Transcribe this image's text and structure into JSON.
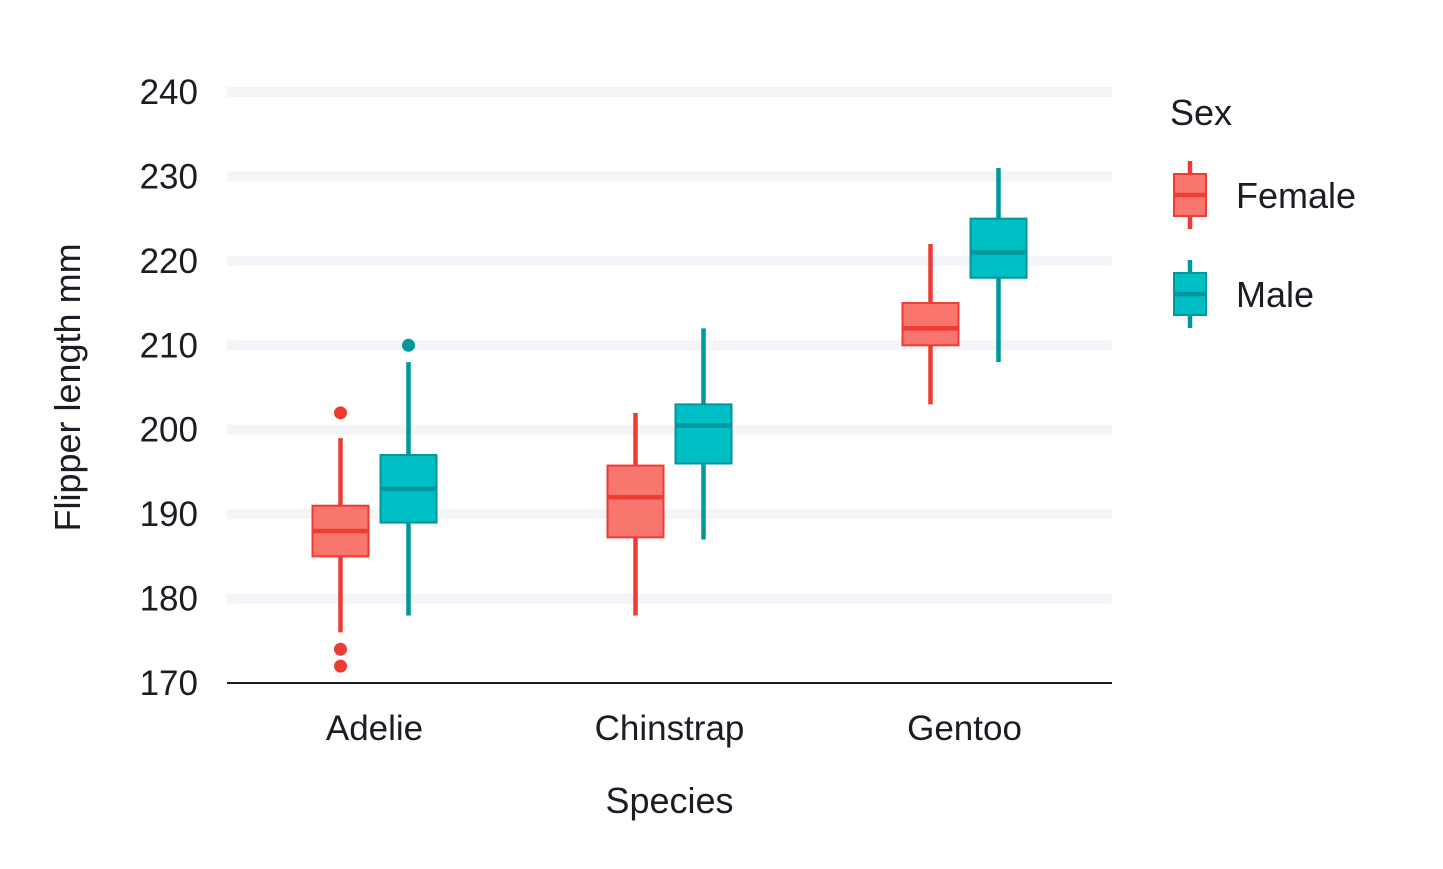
{
  "chart_data": {
    "type": "box",
    "xlabel": "Species",
    "ylabel": "Flipper length mm",
    "ylim": [
      170,
      240
    ],
    "yticks": [
      "170",
      "180",
      "190",
      "200",
      "210",
      "220",
      "230",
      "240"
    ],
    "grid": "horizontal",
    "categories": [
      "Adelie",
      "Chinstrap",
      "Gentoo"
    ],
    "legend": {
      "title": "Sex",
      "placement": "right"
    },
    "series": [
      {
        "name": "Female",
        "fill": "#F8766D",
        "stroke": "#EE3B33",
        "boxes": [
          {
            "category": "Adelie",
            "whisker_low": 176,
            "q1": 185,
            "median": 188,
            "q3": 191,
            "whisker_high": 199,
            "outliers": [
              172,
              174,
              202
            ]
          },
          {
            "category": "Chinstrap",
            "whisker_low": 178,
            "q1": 187.25,
            "median": 192,
            "q3": 195.75,
            "whisker_high": 202,
            "outliers": []
          },
          {
            "category": "Gentoo",
            "whisker_low": 203,
            "q1": 210,
            "median": 212,
            "q3": 215,
            "whisker_high": 222,
            "outliers": []
          }
        ]
      },
      {
        "name": "Male",
        "fill": "#00BFC4",
        "stroke": "#00979B",
        "boxes": [
          {
            "category": "Adelie",
            "whisker_low": 178,
            "q1": 189,
            "median": 193,
            "q3": 197,
            "whisker_high": 208,
            "outliers": [
              210
            ]
          },
          {
            "category": "Chinstrap",
            "whisker_low": 187,
            "q1": 196,
            "median": 200.5,
            "q3": 203,
            "whisker_high": 212,
            "outliers": []
          },
          {
            "category": "Gentoo",
            "whisker_low": 208,
            "q1": 218,
            "median": 221,
            "q3": 225,
            "whisker_high": 231,
            "outliers": []
          }
        ]
      }
    ]
  }
}
